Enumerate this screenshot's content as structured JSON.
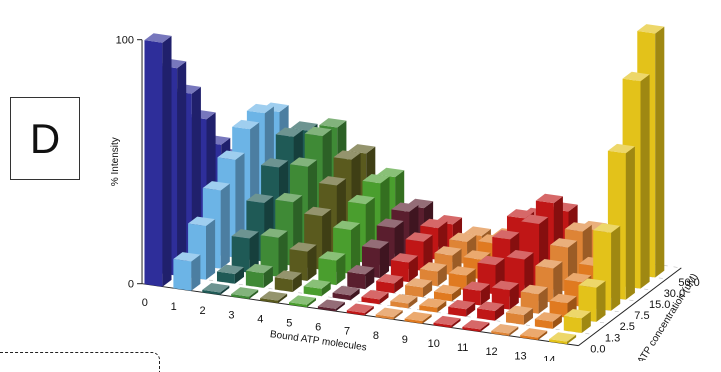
{
  "panel": {
    "label": "D"
  },
  "chart_data": {
    "type": "bar3d",
    "title": "",
    "xlabel": "Bound ATP molecules",
    "ylabel": "% Intensity",
    "zlabel": "ATP concentration (uM)",
    "x": [
      "0",
      "1",
      "2",
      "3",
      "4",
      "5",
      "6",
      "7",
      "8",
      "9",
      "10",
      "11",
      "12",
      "13",
      "14"
    ],
    "concentrations": [
      "0.0",
      "1.3",
      "2.5",
      "7.5",
      "15.0",
      "30.0",
      "50.0"
    ],
    "y_ticks": [
      "0",
      "100"
    ],
    "ylim": [
      0,
      100
    ],
    "series_colors": [
      "#2e2e9a",
      "#6cb4e6",
      "#1f5a56",
      "#3f8a36",
      "#5a5a1e",
      "#4a9e2e",
      "#5a1e2e",
      "#c01616",
      "#de8436",
      "#e07a20",
      "#e3c21a"
    ],
    "bars": [
      [
        {
          "c": "0.0",
          "v": 100
        },
        {
          "c": "1.3",
          "v": 85
        },
        {
          "c": "2.5",
          "v": 70
        },
        {
          "c": "7.5",
          "v": 55
        },
        {
          "c": "15.0",
          "v": 40
        },
        {
          "c": "30.0",
          "v": 30
        },
        {
          "c": "50.0",
          "v": 24
        }
      ],
      [
        {
          "c": "0.0",
          "v": 12
        },
        {
          "c": "1.3",
          "v": 22
        },
        {
          "c": "2.5",
          "v": 32
        },
        {
          "c": "7.5",
          "v": 40
        },
        {
          "c": "15.0",
          "v": 48
        },
        {
          "c": "30.0",
          "v": 50
        },
        {
          "c": "50.0",
          "v": 46
        }
      ],
      [
        {
          "c": "0.0",
          "v": 1
        },
        {
          "c": "1.3",
          "v": 4
        },
        {
          "c": "2.5",
          "v": 14
        },
        {
          "c": "7.5",
          "v": 24
        },
        {
          "c": "15.0",
          "v": 34
        },
        {
          "c": "30.0",
          "v": 42
        },
        {
          "c": "50.0",
          "v": 40
        }
      ],
      [
        {
          "c": "0.0",
          "v": 1
        },
        {
          "c": "1.3",
          "v": 6
        },
        {
          "c": "2.5",
          "v": 16
        },
        {
          "c": "7.5",
          "v": 26
        },
        {
          "c": "15.0",
          "v": 36
        },
        {
          "c": "30.0",
          "v": 44
        },
        {
          "c": "50.0",
          "v": 43
        }
      ],
      [
        {
          "c": "0.0",
          "v": 1
        },
        {
          "c": "1.3",
          "v": 5
        },
        {
          "c": "2.5",
          "v": 12
        },
        {
          "c": "7.5",
          "v": 22
        },
        {
          "c": "15.0",
          "v": 30
        },
        {
          "c": "30.0",
          "v": 36
        },
        {
          "c": "50.0",
          "v": 34
        }
      ],
      [
        {
          "c": "0.0",
          "v": 1
        },
        {
          "c": "1.3",
          "v": 3
        },
        {
          "c": "2.5",
          "v": 10
        },
        {
          "c": "7.5",
          "v": 18
        },
        {
          "c": "15.0",
          "v": 24
        },
        {
          "c": "30.0",
          "v": 28
        },
        {
          "c": "50.0",
          "v": 26
        }
      ],
      [
        {
          "c": "0.0",
          "v": 1
        },
        {
          "c": "1.3",
          "v": 2
        },
        {
          "c": "2.5",
          "v": 6
        },
        {
          "c": "7.5",
          "v": 12
        },
        {
          "c": "15.0",
          "v": 16
        },
        {
          "c": "30.0",
          "v": 18
        },
        {
          "c": "50.0",
          "v": 15
        }
      ],
      [
        {
          "c": "0.0",
          "v": 1
        },
        {
          "c": "1.3",
          "v": 2
        },
        {
          "c": "2.5",
          "v": 4
        },
        {
          "c": "7.5",
          "v": 8
        },
        {
          "c": "15.0",
          "v": 12
        },
        {
          "c": "30.0",
          "v": 13
        },
        {
          "c": "50.0",
          "v": 10
        }
      ],
      [
        {
          "c": "0.0",
          "v": 1
        },
        {
          "c": "1.3",
          "v": 2
        },
        {
          "c": "2.5",
          "v": 4
        },
        {
          "c": "7.5",
          "v": 6
        },
        {
          "c": "15.0",
          "v": 8
        },
        {
          "c": "30.0",
          "v": 9
        },
        {
          "c": "50.0",
          "v": 7
        }
      ],
      [
        {
          "c": "0.0",
          "v": 1
        },
        {
          "c": "1.3",
          "v": 2
        },
        {
          "c": "2.5",
          "v": 3
        },
        {
          "c": "7.5",
          "v": 6
        },
        {
          "c": "15.0",
          "v": 8
        },
        {
          "c": "30.0",
          "v": 10
        },
        {
          "c": "50.0",
          "v": 8
        }
      ],
      [
        {
          "c": "0.0",
          "v": 1
        },
        {
          "c": "1.3",
          "v": 3
        },
        {
          "c": "2.5",
          "v": 6
        },
        {
          "c": "7.5",
          "v": 12
        },
        {
          "c": "15.0",
          "v": 18
        },
        {
          "c": "30.0",
          "v": 22
        },
        {
          "c": "50.0",
          "v": 18
        }
      ],
      [
        {
          "c": "0.0",
          "v": 1
        },
        {
          "c": "1.3",
          "v": 4
        },
        {
          "c": "2.5",
          "v": 8
        },
        {
          "c": "7.5",
          "v": 16
        },
        {
          "c": "15.0",
          "v": 26
        },
        {
          "c": "30.0",
          "v": 30
        },
        {
          "c": "50.0",
          "v": 22
        }
      ],
      [
        {
          "c": "0.0",
          "v": 1
        },
        {
          "c": "1.3",
          "v": 4
        },
        {
          "c": "2.5",
          "v": 8
        },
        {
          "c": "7.5",
          "v": 14
        },
        {
          "c": "15.0",
          "v": 18
        },
        {
          "c": "30.0",
          "v": 20
        },
        {
          "c": "50.0",
          "v": 16
        }
      ],
      [
        {
          "c": "0.0",
          "v": 1
        },
        {
          "c": "1.3",
          "v": 3
        },
        {
          "c": "2.5",
          "v": 6
        },
        {
          "c": "7.5",
          "v": 10
        },
        {
          "c": "15.0",
          "v": 12
        },
        {
          "c": "30.0",
          "v": 14
        },
        {
          "c": "50.0",
          "v": 12
        }
      ],
      [
        {
          "c": "0.0",
          "v": 1
        },
        {
          "c": "1.3",
          "v": 6
        },
        {
          "c": "2.5",
          "v": 14
        },
        {
          "c": "7.5",
          "v": 32
        },
        {
          "c": "15.0",
          "v": 60
        },
        {
          "c": "30.0",
          "v": 85
        },
        {
          "c": "50.0",
          "v": 100
        }
      ]
    ]
  }
}
